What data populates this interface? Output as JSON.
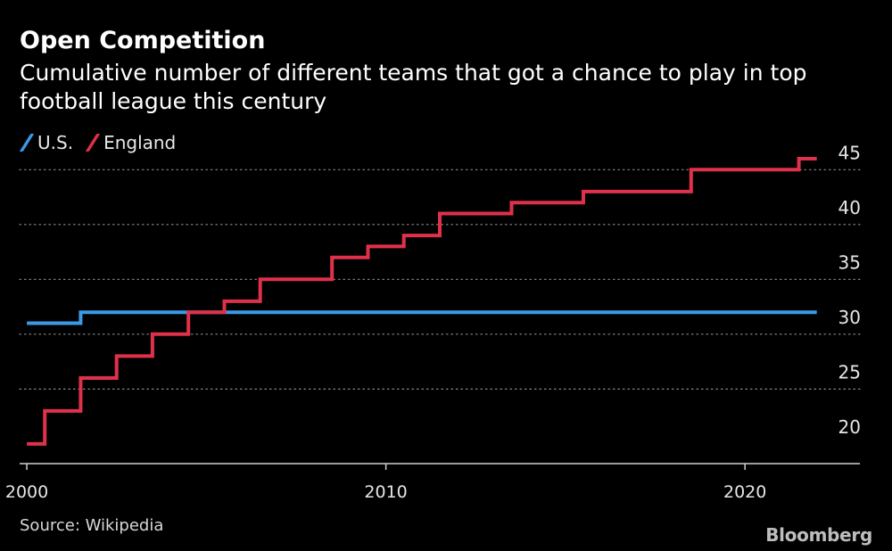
{
  "chart_data": {
    "type": "line",
    "step": true,
    "title": "Open Competition",
    "subtitle": "Cumulative number of different teams that got a chance to play in top football league this century",
    "xlabel": "",
    "ylabel": "",
    "xlim": [
      1999.8,
      2023.2
    ],
    "ylim": [
      18.2,
      46
    ],
    "x_ticks": [
      2000,
      2010,
      2020
    ],
    "x_tick_labels": [
      "2000",
      "2010",
      "2020"
    ],
    "y_ticks": [
      20,
      25,
      30,
      35,
      40,
      45
    ],
    "y_tick_labels": [
      "20",
      "25",
      "30",
      "35",
      "40",
      "45"
    ],
    "grid": "horizontal dotted",
    "legend_position": "top-left",
    "series": [
      {
        "name": "U.S.",
        "color": "#3a9ae8",
        "x": [
          2000,
          2001.5,
          2001.5,
          2022
        ],
        "y": [
          31,
          31,
          32,
          32
        ]
      },
      {
        "name": "England",
        "color": "#e0314a",
        "x": [
          2000,
          2000.5,
          2000.5,
          2001.5,
          2001.5,
          2002.5,
          2002.5,
          2003.5,
          2003.5,
          2004.5,
          2004.5,
          2005.5,
          2005.5,
          2006.5,
          2006.5,
          2008.5,
          2008.5,
          2009.5,
          2009.5,
          2010.5,
          2010.5,
          2011.5,
          2011.5,
          2013.5,
          2013.5,
          2015.5,
          2015.5,
          2018.5,
          2018.5,
          2021.5,
          2021.5,
          2022
        ],
        "y": [
          20,
          20,
          23,
          23,
          26,
          26,
          28,
          28,
          30,
          30,
          32,
          32,
          33,
          33,
          35,
          35,
          37,
          37,
          38,
          38,
          39,
          39,
          41,
          41,
          42,
          42,
          43,
          43,
          45,
          45,
          46,
          46
        ]
      }
    ]
  },
  "legend": {
    "items": [
      {
        "label": "U.S.",
        "color": "#3a9ae8"
      },
      {
        "label": "England",
        "color": "#e0314a"
      }
    ]
  },
  "footer": {
    "source": "Source: Wikipedia",
    "brand": "Bloomberg"
  }
}
